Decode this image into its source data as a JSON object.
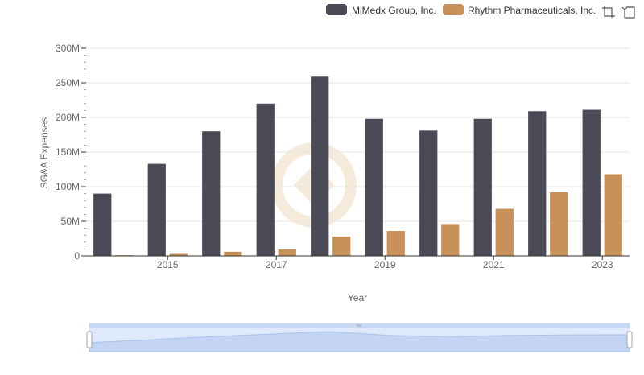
{
  "colors": {
    "series_a": "#4a4956",
    "series_b": "#c8915a",
    "grid": "#e6e6e6",
    "axis": "#333333",
    "tick_text": "#666666",
    "label_text": "#666666",
    "navigator_fill": "#d3e2fb",
    "navigator_line": "#a9c0ea",
    "watermark": "#f6e9d6"
  },
  "icons": {
    "zoom": "crop-icon",
    "reset": "crop-reset-icon",
    "watermark": "brand-logo-watermark"
  },
  "chart_data": {
    "type": "bar",
    "title": "",
    "xlabel": "Year",
    "ylabel": "SG&A Expenses",
    "x": [
      2014,
      2015,
      2016,
      2017,
      2018,
      2019,
      2020,
      2021,
      2022,
      2023
    ],
    "x_ticks": [
      "2015",
      "2017",
      "2019",
      "2021",
      "2023"
    ],
    "y_ticks": [
      "0",
      "50M",
      "100M",
      "150M",
      "200M",
      "250M",
      "300M"
    ],
    "ylim": [
      0,
      300000000
    ],
    "grid": true,
    "legend_position": "top-right",
    "series": [
      {
        "name": "MiMedx Group, Inc.",
        "values": [
          90000000,
          133000000,
          180000000,
          220000000,
          259000000,
          198000000,
          181000000,
          198000000,
          209000000,
          211000000
        ]
      },
      {
        "name": "Rhythm Pharmaceuticals, Inc.",
        "values": [
          1000000,
          3000000,
          6000000,
          9500000,
          28000000,
          36000000,
          46000000,
          68000000,
          92000000,
          118000000
        ]
      }
    ]
  }
}
